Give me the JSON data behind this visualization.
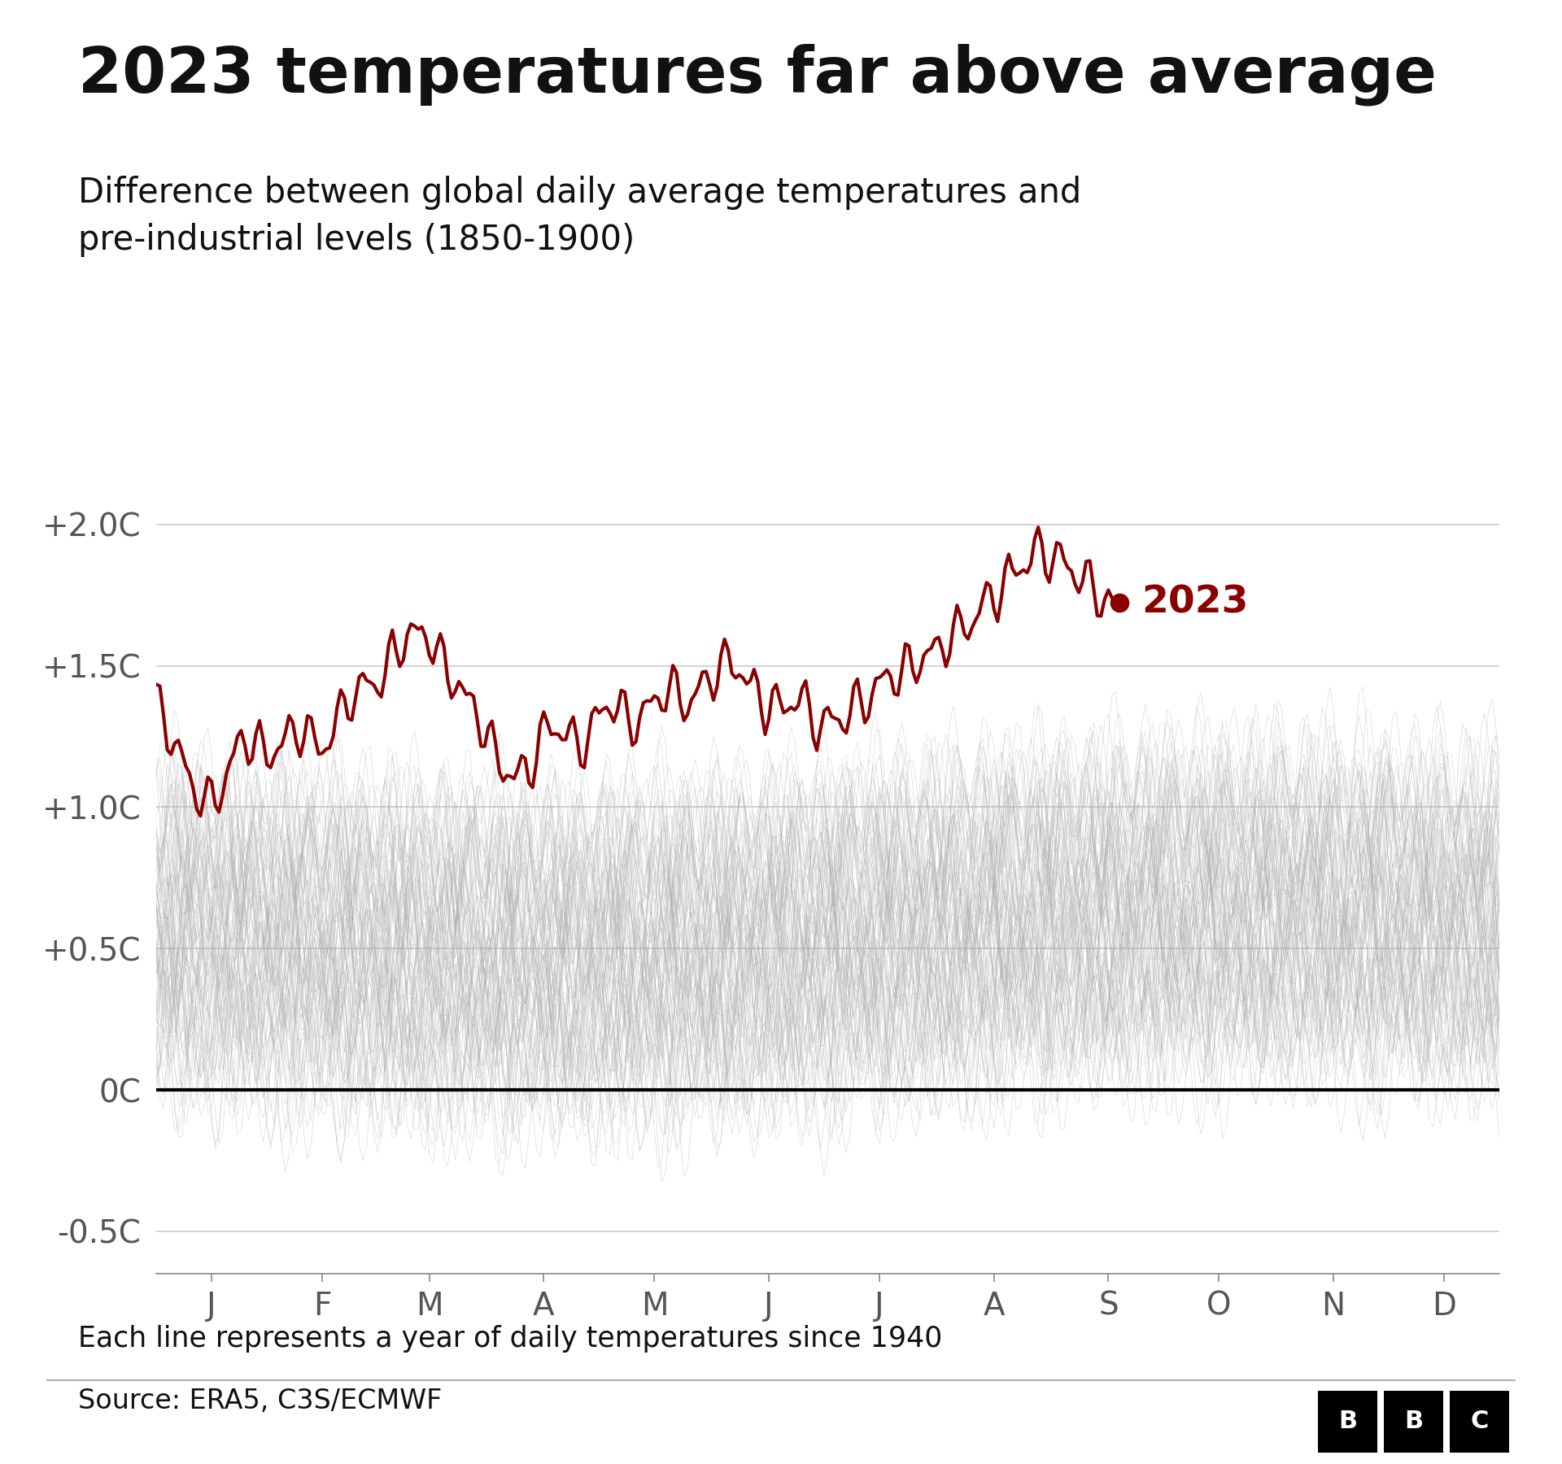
{
  "title": "2023 temperatures far above average",
  "subtitle": "Difference between global daily average temperatures and\npre-industrial levels (1850-1900)",
  "footnote": "Each line represents a year of daily temperatures since 1940",
  "source": "Source: ERA5, C3S/ECMWF",
  "ylabel_ticks": [
    "+2.0C",
    "+1.5C",
    "+1.0C",
    "+0.5C",
    "0C",
    "-0.5C"
  ],
  "ytick_vals": [
    2.0,
    1.5,
    1.0,
    0.5,
    0.0,
    -0.5
  ],
  "ylim": [
    -0.65,
    2.25
  ],
  "month_labels": [
    "J",
    "F",
    "M",
    "A",
    "M",
    "J",
    "J",
    "A",
    "S",
    "O",
    "N",
    "D"
  ],
  "month_days": [
    31,
    28,
    31,
    30,
    31,
    30,
    31,
    31,
    30,
    31,
    30,
    31
  ],
  "title_fontsize": 56,
  "subtitle_fontsize": 30,
  "tick_fontsize": 28,
  "footnote_fontsize": 25,
  "source_fontsize": 24,
  "label_2023_fontsize": 34,
  "year_start": 1940,
  "year_2023": 2023,
  "background_color": "#ffffff",
  "historical_color": "#aaaaaa",
  "line_2023_color": "#8B0000",
  "zero_line_color": "#000000",
  "grid_color": "#cccccc",
  "label_2023": "2023",
  "historical_alpha": 0.35,
  "historical_linewidth": 0.6,
  "line_2023_linewidth": 3.0,
  "n_days_2023": 262
}
